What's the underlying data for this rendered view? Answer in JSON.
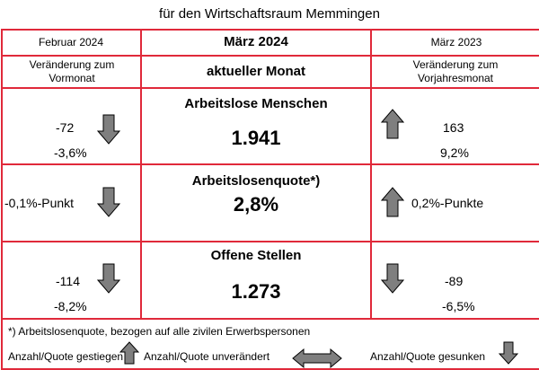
{
  "page_title": "für den Wirtschaftsraum Memmingen",
  "header": {
    "left_month": "Februar 2024",
    "center_month": "März 2024",
    "right_month": "März 2023",
    "left_label": "Veränderung zum Vormonat",
    "center_label": "aktueller Monat",
    "right_label": "Veränderung zum Vorjahresmonat"
  },
  "rows": [
    {
      "title": "Arbeitslose Menschen",
      "value": "1.941",
      "left_abs": "-72",
      "left_pct": "-3,6%",
      "left_arrow": "arrow-down-icon",
      "right_abs": "163",
      "right_pct": "9,2%",
      "right_arrow": "arrow-up-icon"
    },
    {
      "title": "Arbeitslosenquote*)",
      "value": "2,8%",
      "left_change": "-0,1%-Punkt",
      "left_arrow": "arrow-down-icon",
      "right_change": "0,2%-Punkte",
      "right_arrow": "arrow-up-icon"
    },
    {
      "title": "Offene Stellen",
      "value": "1.273",
      "left_abs": "-114",
      "left_pct": "-8,2%",
      "left_arrow": "arrow-down-icon",
      "right_abs": "-89",
      "right_pct": "-6,5%",
      "right_arrow": "arrow-down-icon"
    }
  ],
  "footnote": "*) Arbeitslosenquote, bezogen auf alle zivilen Erwerbspersonen",
  "legend": {
    "increased": "Anzahl/Quote gestiegen",
    "unchanged": "Anzahl/Quote unverändert",
    "decreased": "Anzahl/Quote gesunken"
  },
  "colors": {
    "border": "#e0293a",
    "arrow_fill": "#7f7f7f",
    "arrow_stroke": "#000000"
  }
}
